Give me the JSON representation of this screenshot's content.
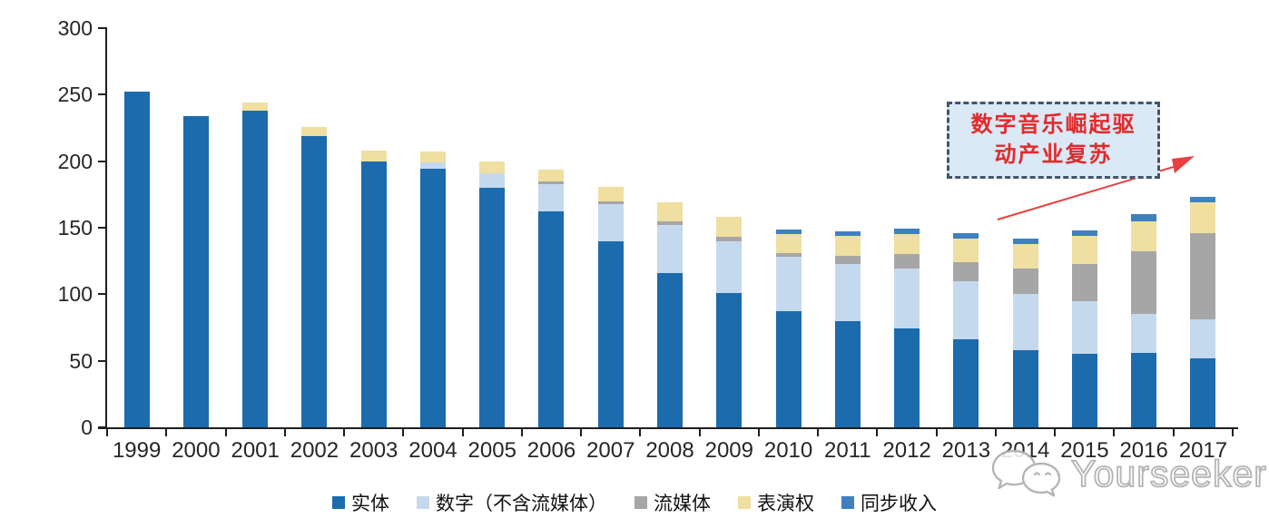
{
  "chart_data": {
    "type": "bar",
    "stacked": true,
    "title": "",
    "xlabel": "",
    "ylabel": "",
    "ylim": [
      0,
      300
    ],
    "yticks": [
      0,
      50,
      100,
      150,
      200,
      250,
      300
    ],
    "grid": false,
    "legend_position": "bottom",
    "categories": [
      "1999",
      "2000",
      "2001",
      "2002",
      "2003",
      "2004",
      "2005",
      "2006",
      "2007",
      "2008",
      "2009",
      "2010",
      "2011",
      "2012",
      "2013",
      "2014",
      "2015",
      "2016",
      "2017"
    ],
    "series": [
      {
        "name": "实体",
        "color": "#1C6BAD",
        "values": [
          252,
          234,
          238,
          219,
          200,
          194,
          180,
          162,
          140,
          116,
          101,
          87,
          80,
          74,
          66,
          58,
          55,
          56,
          52
        ]
      },
      {
        "name": "数字（不含流媒体）",
        "color": "#C5D9EE",
        "values": [
          0,
          0,
          0,
          0,
          0,
          5,
          11,
          21,
          28,
          36,
          39,
          41,
          43,
          45,
          44,
          42,
          40,
          29,
          29
        ]
      },
      {
        "name": "流媒体",
        "color": "#A6A6A6",
        "values": [
          0,
          0,
          0,
          0,
          0,
          0,
          0,
          2,
          2,
          3,
          3,
          3,
          6,
          11,
          14,
          19,
          28,
          47,
          65
        ]
      },
      {
        "name": "表演权",
        "color": "#EFDFA0",
        "values": [
          0,
          0,
          6,
          7,
          8,
          8,
          9,
          9,
          11,
          14,
          15,
          14,
          15,
          15,
          18,
          19,
          21,
          23,
          23
        ]
      },
      {
        "name": "同步收入",
        "color": "#3F80C0",
        "values": [
          0,
          0,
          0,
          0,
          0,
          0,
          0,
          0,
          0,
          0,
          0,
          4,
          3,
          4,
          4,
          4,
          4,
          5,
          4
        ]
      }
    ]
  },
  "annotation": {
    "line1": "数字音乐崛起驱",
    "line2": "动产业复苏",
    "box_fill": "#DBE8F6",
    "box_border": "#44546A",
    "text_color": "#E02B2B",
    "arrow_color": "#E84040"
  },
  "watermark": {
    "text": "Yourseeker"
  }
}
